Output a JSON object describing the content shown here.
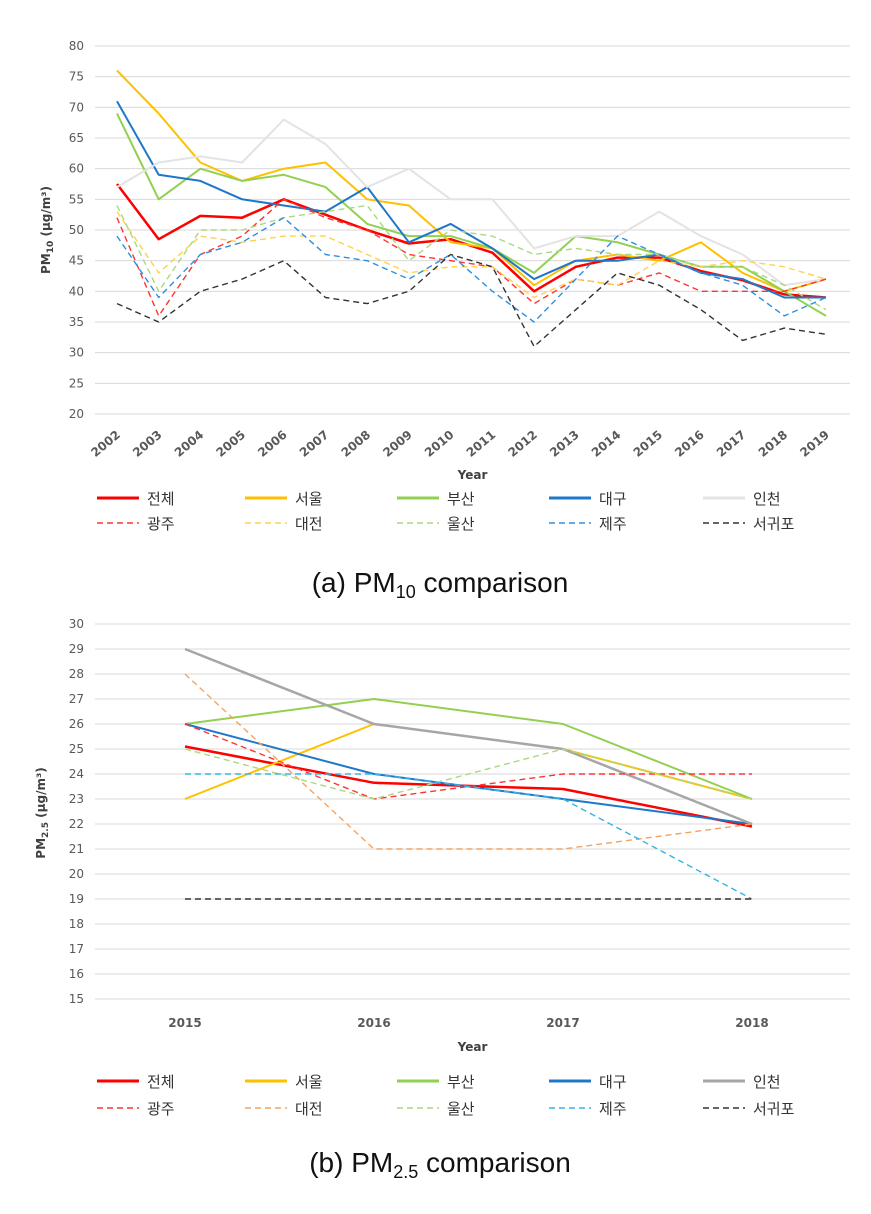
{
  "chart_data": [
    {
      "type": "line",
      "caption_prefix": "(a)  PM",
      "caption_sub": "10",
      "caption_suffix": "  comparison",
      "ylabel_prefix": "PM",
      "ylabel_sub": "10",
      "ylabel_suffix": " (μg/m³)",
      "xlabel": "Year",
      "ylim": [
        20,
        80
      ],
      "ytick_step": 5,
      "grid": true,
      "legend_position": "bottom",
      "categories": [
        "2002",
        "2003",
        "2004",
        "2005",
        "2006",
        "2007",
        "2008",
        "2009",
        "2010",
        "2011",
        "2012",
        "2013",
        "2014",
        "2015",
        "2016",
        "2017",
        "2018",
        "2019"
      ],
      "series": [
        {
          "name": "전체",
          "color": "#ff0000",
          "dash": "solid",
          "width": 2.5,
          "values": [
            57.5,
            48.5,
            52.3,
            52,
            55,
            52.5,
            50,
            47.8,
            48.5,
            46.3,
            40,
            44,
            45.5,
            45.5,
            43.3,
            41.8,
            39.5,
            39
          ]
        },
        {
          "name": "서울",
          "color": "#ffc000",
          "dash": "solid",
          "width": 2,
          "values": [
            76,
            69,
            61,
            58,
            60,
            61,
            55,
            54,
            48,
            47,
            41,
            45,
            46,
            45,
            48,
            43,
            40,
            42
          ]
        },
        {
          "name": "부산",
          "color": "#92d050",
          "dash": "solid",
          "width": 2,
          "values": [
            69,
            55,
            60,
            58,
            59,
            57,
            51,
            49,
            49,
            47,
            43,
            49,
            48,
            46,
            44,
            44,
            40,
            36
          ]
        },
        {
          "name": "대구",
          "color": "#1f77c8",
          "dash": "solid",
          "width": 2,
          "values": [
            71,
            59,
            58,
            55,
            54,
            53,
            57,
            48,
            51,
            47,
            42,
            45,
            45,
            46,
            43,
            42,
            39,
            39
          ]
        },
        {
          "name": "인천",
          "color": "#e3e3e3",
          "dash": "solid",
          "width": 2,
          "values": [
            57,
            61,
            62,
            61,
            68,
            64,
            57,
            60,
            55,
            55,
            47,
            49,
            49,
            53,
            49,
            46,
            41,
            42
          ]
        },
        {
          "name": "광주",
          "color": "#ff3333",
          "dash": "dash",
          "width": 1.4,
          "values": [
            52,
            36,
            46,
            49,
            55,
            52,
            50,
            46,
            45,
            44,
            38,
            42,
            41,
            43,
            40,
            40,
            40,
            42
          ]
        },
        {
          "name": "대전",
          "color": "#ffd24d",
          "dash": "dash",
          "width": 1.4,
          "values": [
            53,
            43,
            49,
            48,
            49,
            49,
            46,
            43,
            44,
            44,
            39,
            42,
            41,
            45,
            44,
            45,
            44,
            42
          ]
        },
        {
          "name": "울산",
          "color": "#a9d97f",
          "dash": "dash",
          "width": 1.4,
          "values": [
            54,
            40,
            50,
            50,
            52,
            53,
            54,
            45,
            50,
            49,
            46,
            47,
            46,
            46,
            44,
            44,
            41,
            37
          ]
        },
        {
          "name": "제주",
          "color": "#2e8fe0",
          "dash": "dash",
          "width": 1.4,
          "values": [
            49,
            39,
            46,
            48,
            52,
            46,
            45,
            42,
            46,
            40,
            35,
            42,
            49,
            46,
            43,
            41,
            36,
            39
          ]
        },
        {
          "name": "서귀포",
          "color": "#333333",
          "dash": "dash",
          "width": 1.4,
          "values": [
            38,
            35,
            40,
            42,
            45,
            39,
            38,
            40,
            46,
            44,
            31,
            37,
            43,
            41,
            37,
            32,
            34,
            33
          ]
        }
      ]
    },
    {
      "type": "line",
      "caption_prefix": "(b)  PM",
      "caption_sub": "2.5",
      "caption_suffix": "  comparison",
      "ylabel_prefix": "PM",
      "ylabel_sub": "2.5",
      "ylabel_suffix": " (μg/m³)",
      "xlabel": "Year",
      "ylim": [
        15,
        30
      ],
      "ytick_step": 1,
      "grid": true,
      "legend_position": "bottom",
      "categories": [
        "2015",
        "2016",
        "2017",
        "2018"
      ],
      "series": [
        {
          "name": "전체",
          "color": "#ff0000",
          "dash": "solid",
          "width": 2.5,
          "values": [
            25.1,
            23.65,
            23.4,
            21.9
          ]
        },
        {
          "name": "서울",
          "color": "#ffc000",
          "dash": "solid",
          "width": 2,
          "values": [
            23,
            26,
            25,
            23
          ]
        },
        {
          "name": "부산",
          "color": "#92d050",
          "dash": "solid",
          "width": 2,
          "values": [
            26,
            27,
            26,
            23
          ]
        },
        {
          "name": "대구",
          "color": "#1f77c8",
          "dash": "solid",
          "width": 2,
          "values": [
            26,
            24,
            23,
            22
          ]
        },
        {
          "name": "인천",
          "color": "#a6a6a6",
          "dash": "solid",
          "width": 2.5,
          "values": [
            29,
            26,
            25,
            22
          ]
        },
        {
          "name": "광주",
          "color": "#ff3333",
          "dash": "dash",
          "width": 1.4,
          "values": [
            26,
            23,
            24,
            24
          ]
        },
        {
          "name": "대전",
          "color": "#f4a460",
          "dash": "dash",
          "width": 1.4,
          "values": [
            28,
            21,
            21,
            22
          ]
        },
        {
          "name": "울산",
          "color": "#a9d97f",
          "dash": "dash",
          "width": 1.4,
          "values": [
            25,
            23,
            25,
            23
          ]
        },
        {
          "name": "제주",
          "color": "#33b5e5",
          "dash": "dash",
          "width": 1.4,
          "values": [
            24,
            24,
            23,
            19
          ]
        },
        {
          "name": "서귀포",
          "color": "#333333",
          "dash": "dash",
          "width": 1.4,
          "values": [
            19,
            19,
            19,
            19
          ]
        }
      ]
    }
  ]
}
